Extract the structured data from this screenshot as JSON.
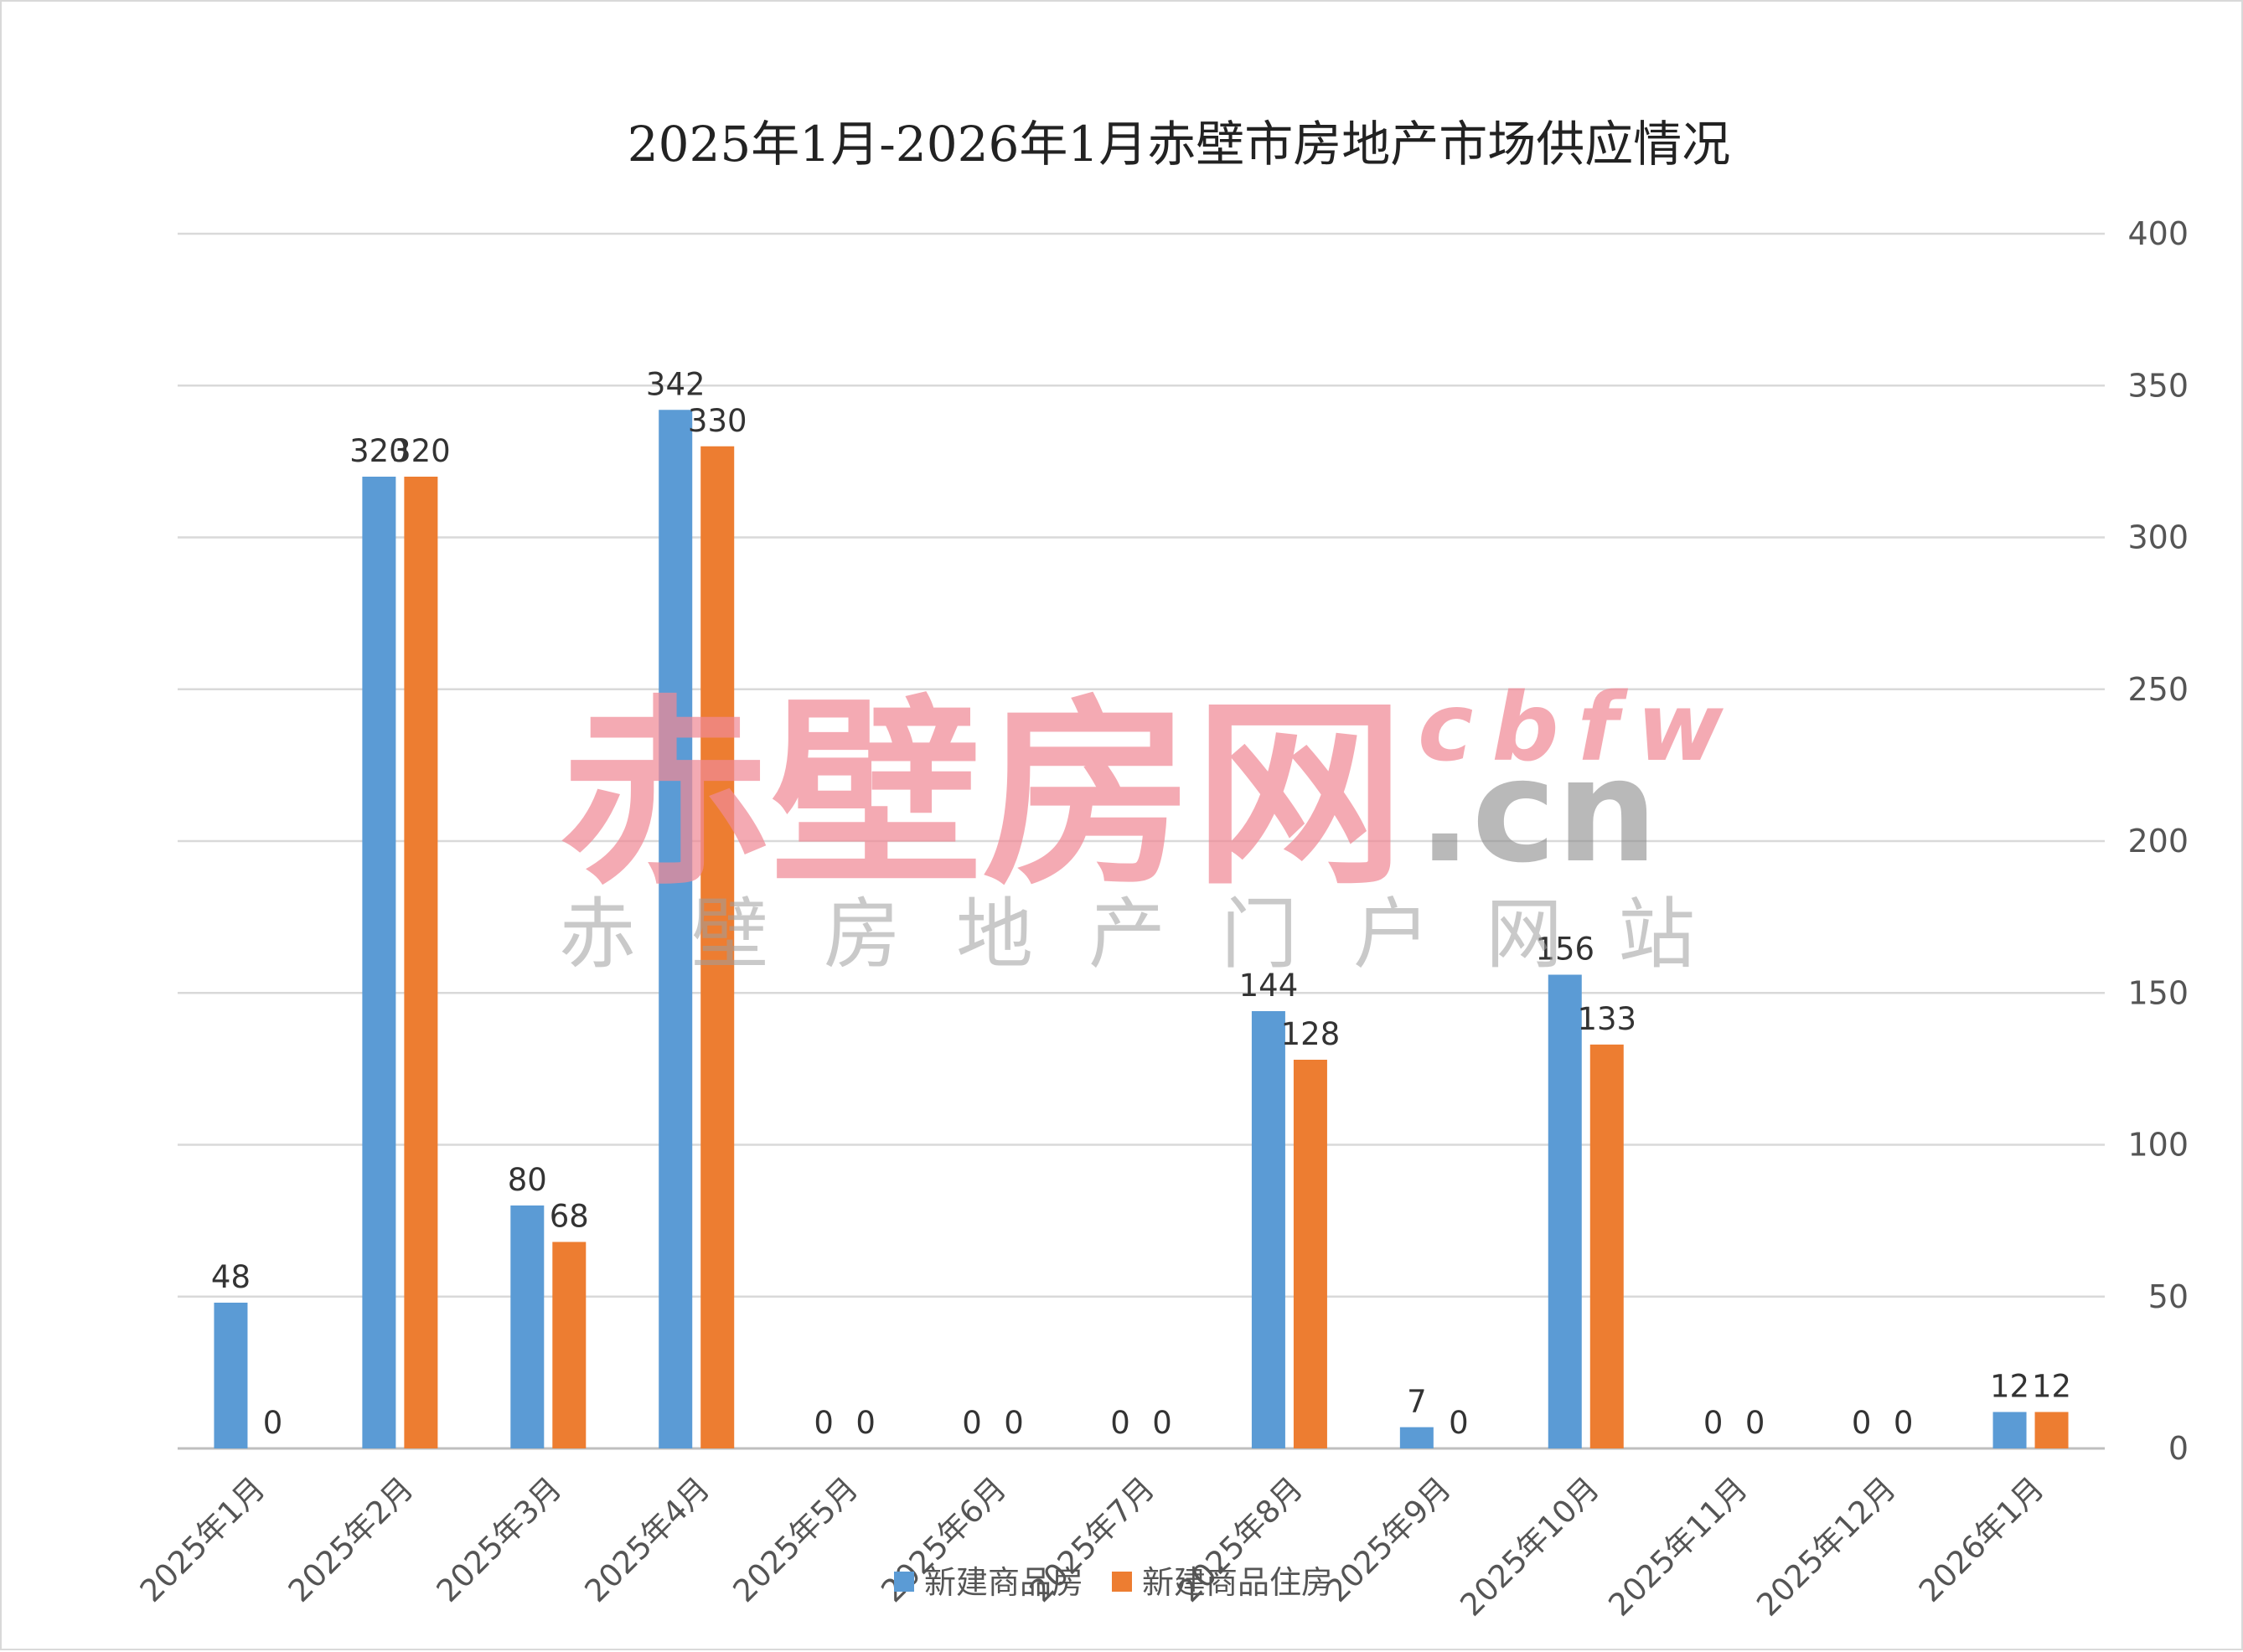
{
  "chart_data": {
    "type": "bar",
    "title": "2025年1月-2026年1月赤壁市房地产市场供应情况",
    "categories": [
      "2025年1月",
      "2025年2月",
      "2025年3月",
      "2025年4月",
      "2025年5月",
      "2025年6月",
      "2025年7月",
      "2025年8月",
      "2025年9月",
      "2025年10月",
      "2025年11月",
      "2025年12月",
      "2026年1月"
    ],
    "series": [
      {
        "name": "新建商品房",
        "color": "#5b9bd5",
        "values": [
          48,
          320,
          80,
          342,
          0,
          0,
          0,
          144,
          7,
          156,
          0,
          0,
          12
        ]
      },
      {
        "name": "新建商品住房",
        "color": "#ed7d31",
        "values": [
          0,
          320,
          68,
          330,
          0,
          0,
          0,
          128,
          0,
          133,
          0,
          0,
          12
        ]
      }
    ],
    "ylim": [
      0,
      400
    ],
    "yticks": [
      0,
      50,
      100,
      150,
      200,
      250,
      300,
      350,
      400
    ],
    "y_axis_side": "right",
    "grid": true,
    "legend_position": "bottom"
  },
  "watermark": {
    "brand": "赤壁房网",
    "domain_top": "cbfw",
    "domain_bottom": ".cn",
    "tagline": [
      "赤",
      "壁",
      "房",
      "地",
      "产",
      "门",
      "户",
      "网",
      "站"
    ]
  }
}
